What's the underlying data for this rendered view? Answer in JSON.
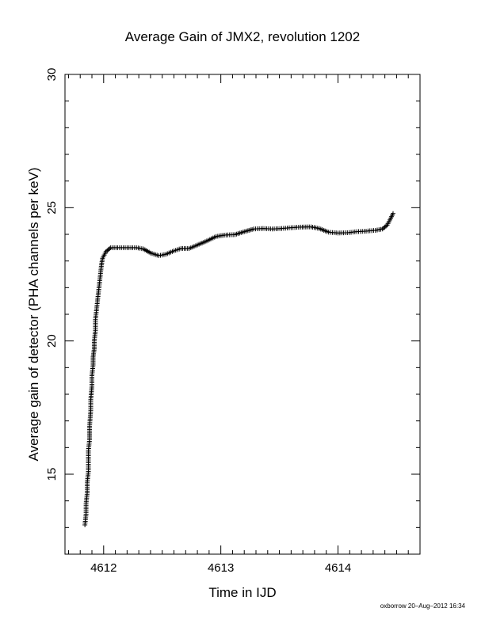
{
  "chart_data": {
    "type": "scatter",
    "title": "Average Gain of JMX2, revolution 1202",
    "xlabel": "Time in IJD",
    "ylabel": "Average gain of detector (PHA channels per keV)",
    "xlim": [
      4611.67,
      4614.7
    ],
    "ylim": [
      12,
      30
    ],
    "x_ticks": [
      4612,
      4613,
      4614
    ],
    "y_ticks": [
      15,
      20,
      25,
      30
    ],
    "marker": "plus",
    "grid": false,
    "points": [
      [
        4611.84,
        13.1
      ],
      [
        4611.85,
        13.5
      ],
      [
        4611.85,
        13.9
      ],
      [
        4611.86,
        14.3
      ],
      [
        4611.86,
        14.7
      ],
      [
        4611.87,
        15.1
      ],
      [
        4611.87,
        15.5
      ],
      [
        4611.87,
        15.9
      ],
      [
        4611.88,
        16.3
      ],
      [
        4611.88,
        16.8
      ],
      [
        4611.89,
        17.4
      ],
      [
        4611.89,
        17.8
      ],
      [
        4611.9,
        18.3
      ],
      [
        4611.9,
        18.7
      ],
      [
        4611.91,
        19.1
      ],
      [
        4611.91,
        19.4
      ],
      [
        4611.92,
        19.7
      ],
      [
        4611.92,
        20.0
      ],
      [
        4611.93,
        20.4
      ],
      [
        4611.93,
        20.8
      ],
      [
        4611.94,
        21.2
      ],
      [
        4611.95,
        21.6
      ],
      [
        4611.96,
        22.0
      ],
      [
        4611.97,
        22.4
      ],
      [
        4611.98,
        22.8
      ],
      [
        4611.99,
        23.1
      ],
      [
        4612.02,
        23.35
      ],
      [
        4612.06,
        23.5
      ],
      [
        4612.12,
        23.5
      ],
      [
        4612.2,
        23.5
      ],
      [
        4612.28,
        23.5
      ],
      [
        4612.34,
        23.45
      ],
      [
        4612.4,
        23.3
      ],
      [
        4612.47,
        23.2
      ],
      [
        4612.53,
        23.25
      ],
      [
        4612.6,
        23.38
      ],
      [
        4612.66,
        23.47
      ],
      [
        4612.73,
        23.47
      ],
      [
        4612.8,
        23.6
      ],
      [
        4612.88,
        23.75
      ],
      [
        4612.96,
        23.92
      ],
      [
        4613.03,
        23.97
      ],
      [
        4613.12,
        23.99
      ],
      [
        4613.2,
        24.1
      ],
      [
        4613.28,
        24.2
      ],
      [
        4613.36,
        24.22
      ],
      [
        4613.44,
        24.2
      ],
      [
        4613.52,
        24.22
      ],
      [
        4613.6,
        24.25
      ],
      [
        4613.68,
        24.27
      ],
      [
        4613.77,
        24.28
      ],
      [
        4613.84,
        24.22
      ],
      [
        4613.92,
        24.08
      ],
      [
        4614.0,
        24.05
      ],
      [
        4614.08,
        24.06
      ],
      [
        4614.16,
        24.1
      ],
      [
        4614.24,
        24.12
      ],
      [
        4614.32,
        24.15
      ],
      [
        4614.38,
        24.2
      ],
      [
        4614.42,
        24.35
      ],
      [
        4614.45,
        24.6
      ],
      [
        4614.47,
        24.78
      ]
    ]
  },
  "footer": {
    "credit": "oxborrow 20–Aug–2012 16:34"
  }
}
